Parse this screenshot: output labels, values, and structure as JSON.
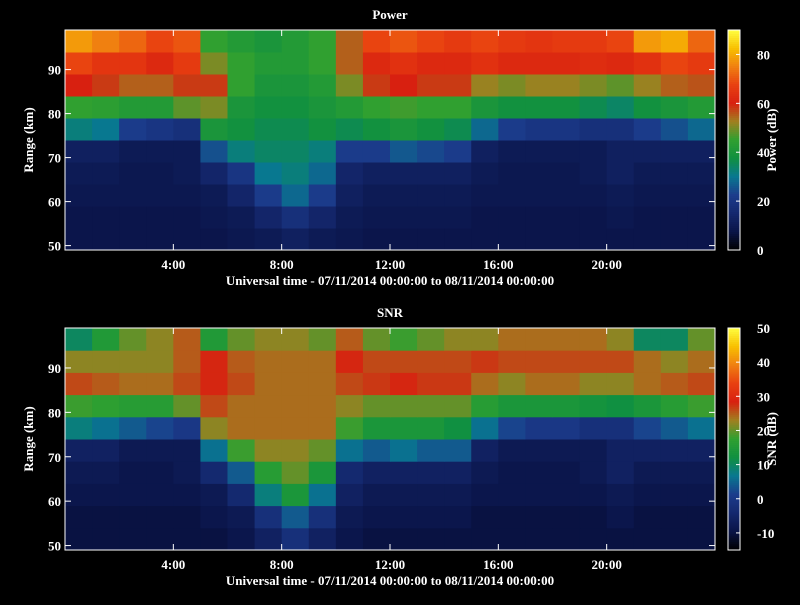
{
  "chart_data": [
    {
      "type": "heatmap",
      "title": "Power",
      "xlabel": "Universal time - 07/11/2014 00:00:00 to 08/11/2014 00:00:00",
      "ylabel": "Range (km)",
      "colorbar_label": "Power (dB)",
      "x": [
        0.5,
        1.5,
        2.5,
        3.5,
        4.5,
        5.5,
        6.5,
        7.5,
        8.5,
        9.5,
        10.5,
        11.5,
        12.5,
        13.5,
        14.5,
        15.5,
        16.5,
        17.5,
        18.5,
        19.5,
        20.5,
        21.5,
        22.5,
        23.5
      ],
      "y": [
        51.5,
        56.5,
        61.5,
        66.5,
        71.5,
        76.5,
        81.5,
        86.5,
        91.5,
        96.5
      ],
      "z": [
        [
          8,
          8,
          8,
          8,
          8,
          8,
          9,
          10,
          12,
          10,
          9,
          8,
          8,
          8,
          8,
          8,
          8,
          8,
          8,
          8,
          8,
          8,
          8,
          8
        ],
        [
          8,
          8,
          8,
          8,
          8,
          9,
          10,
          14,
          18,
          14,
          10,
          9,
          9,
          9,
          9,
          8,
          8,
          8,
          8,
          8,
          9,
          8,
          8,
          8
        ],
        [
          9,
          9,
          9,
          9,
          9,
          10,
          14,
          22,
          28,
          22,
          12,
          10,
          10,
          10,
          10,
          9,
          9,
          9,
          9,
          9,
          10,
          9,
          9,
          9
        ],
        [
          10,
          10,
          9,
          9,
          10,
          14,
          20,
          30,
          32,
          28,
          14,
          12,
          12,
          12,
          12,
          10,
          9,
          9,
          9,
          10,
          12,
          10,
          10,
          10
        ],
        [
          12,
          12,
          10,
          10,
          10,
          25,
          32,
          34,
          34,
          32,
          22,
          22,
          26,
          24,
          22,
          12,
          10,
          10,
          10,
          10,
          12,
          12,
          12,
          12
        ],
        [
          32,
          30,
          22,
          20,
          18,
          40,
          38,
          36,
          36,
          38,
          36,
          38,
          40,
          38,
          36,
          28,
          22,
          20,
          20,
          18,
          18,
          22,
          25,
          28
        ],
        [
          45,
          44,
          42,
          42,
          48,
          50,
          40,
          38,
          38,
          40,
          42,
          45,
          46,
          45,
          45,
          40,
          38,
          38,
          38,
          36,
          34,
          38,
          40,
          42
        ],
        [
          60,
          58,
          55,
          55,
          58,
          58,
          45,
          40,
          40,
          42,
          50,
          58,
          60,
          58,
          58,
          52,
          50,
          52,
          52,
          50,
          48,
          52,
          55,
          56
        ],
        [
          68,
          65,
          65,
          62,
          66,
          50,
          45,
          42,
          42,
          45,
          55,
          62,
          64,
          62,
          62,
          64,
          62,
          62,
          62,
          63,
          62,
          64,
          68,
          66
        ],
        [
          78,
          75,
          72,
          68,
          70,
          45,
          42,
          40,
          42,
          45,
          55,
          68,
          70,
          68,
          66,
          68,
          66,
          65,
          66,
          66,
          68,
          78,
          80,
          72
        ]
      ],
      "xlim": [
        0,
        24
      ],
      "ylim": [
        49,
        99
      ],
      "xticks": [
        {
          "value": 4,
          "label": "4:00"
        },
        {
          "value": 8,
          "label": "8:00"
        },
        {
          "value": 12,
          "label": "12:00"
        },
        {
          "value": 16,
          "label": "16:00"
        },
        {
          "value": 20,
          "label": "20:00"
        }
      ],
      "yticks": [
        50,
        60,
        70,
        80,
        90
      ],
      "clim": [
        0,
        90
      ],
      "cticks": [
        0,
        20,
        40,
        60,
        80
      ],
      "colormap": [
        "#000000",
        "#0a1448",
        "#14286e",
        "#1c3c8c",
        "#087890",
        "#109040",
        "#30a030",
        "#a08020",
        "#d82010",
        "#e84010",
        "#f08010",
        "#f8c000",
        "#ffff40"
      ]
    },
    {
      "type": "heatmap",
      "title": "SNR",
      "xlabel": "Universal time - 07/11/2014 00:00:00 to 08/11/2014 00:00:00",
      "ylabel": "Range (km)",
      "colorbar_label": "SNR (dB)",
      "x": [
        0.5,
        1.5,
        2.5,
        3.5,
        4.5,
        5.5,
        6.5,
        7.5,
        8.5,
        9.5,
        10.5,
        11.5,
        12.5,
        13.5,
        14.5,
        15.5,
        16.5,
        17.5,
        18.5,
        19.5,
        20.5,
        21.5,
        22.5,
        23.5
      ],
      "y": [
        51.5,
        56.5,
        61.5,
        66.5,
        71.5,
        76.5,
        81.5,
        86.5,
        91.5,
        96.5
      ],
      "z": [
        [
          -10,
          -10,
          -10,
          -10,
          -10,
          -10,
          -9,
          -6,
          -2,
          -6,
          -9,
          -10,
          -10,
          -10,
          -10,
          -10,
          -10,
          -10,
          -10,
          -10,
          -10,
          -10,
          -10,
          -10
        ],
        [
          -10,
          -10,
          -10,
          -10,
          -10,
          -9,
          -8,
          -2,
          4,
          -2,
          -8,
          -9,
          -9,
          -9,
          -9,
          -10,
          -10,
          -10,
          -10,
          -10,
          -9,
          -10,
          -10,
          -10
        ],
        [
          -9,
          -9,
          -9,
          -9,
          -9,
          -8,
          -4,
          8,
          14,
          6,
          -6,
          -8,
          -8,
          -8,
          -8,
          -9,
          -9,
          -9,
          -9,
          -9,
          -8,
          -9,
          -9,
          -9
        ],
        [
          -8,
          -8,
          -9,
          -9,
          -8,
          -4,
          4,
          16,
          20,
          14,
          -4,
          -6,
          -6,
          -6,
          -6,
          -8,
          -9,
          -9,
          -9,
          -8,
          -6,
          -8,
          -8,
          -8
        ],
        [
          -6,
          -6,
          -8,
          -8,
          -8,
          6,
          18,
          22,
          22,
          20,
          6,
          4,
          6,
          4,
          4,
          -6,
          -8,
          -8,
          -8,
          -8,
          -6,
          -6,
          -6,
          -6
        ],
        [
          8,
          6,
          4,
          2,
          0,
          22,
          24,
          24,
          24,
          24,
          18,
          14,
          14,
          14,
          12,
          6,
          2,
          0,
          0,
          -2,
          -2,
          2,
          4,
          6
        ],
        [
          18,
          17,
          16,
          16,
          20,
          26,
          24,
          24,
          24,
          24,
          22,
          20,
          20,
          20,
          20,
          16,
          14,
          14,
          14,
          13,
          12,
          14,
          16,
          18
        ],
        [
          26,
          25,
          24,
          24,
          26,
          28,
          26,
          24,
          24,
          24,
          26,
          27,
          28,
          27,
          27,
          24,
          22,
          24,
          24,
          22,
          22,
          24,
          25,
          26
        ],
        [
          22,
          22,
          22,
          22,
          25,
          28,
          25,
          24,
          24,
          24,
          28,
          26,
          26,
          26,
          26,
          27,
          26,
          26,
          26,
          26,
          26,
          24,
          22,
          24
        ],
        [
          10,
          15,
          20,
          22,
          25,
          15,
          20,
          22,
          22,
          20,
          25,
          20,
          18,
          20,
          22,
          22,
          24,
          24,
          24,
          24,
          22,
          10,
          10,
          20
        ]
      ],
      "xlim": [
        0,
        24
      ],
      "ylim": [
        49,
        99
      ],
      "xticks": [
        {
          "value": 4,
          "label": "4:00"
        },
        {
          "value": 8,
          "label": "8:00"
        },
        {
          "value": 12,
          "label": "12:00"
        },
        {
          "value": 16,
          "label": "16:00"
        },
        {
          "value": 20,
          "label": "20:00"
        }
      ],
      "yticks": [
        50,
        60,
        70,
        80,
        90
      ],
      "clim": [
        -15,
        50
      ],
      "cticks": [
        -10,
        0,
        10,
        20,
        30,
        40,
        50
      ],
      "colormap": [
        "#000000",
        "#0a1448",
        "#14286e",
        "#1c3c8c",
        "#087890",
        "#109040",
        "#30a030",
        "#a08020",
        "#d82010",
        "#e84010",
        "#f08010",
        "#f8c000",
        "#ffff40"
      ]
    }
  ]
}
